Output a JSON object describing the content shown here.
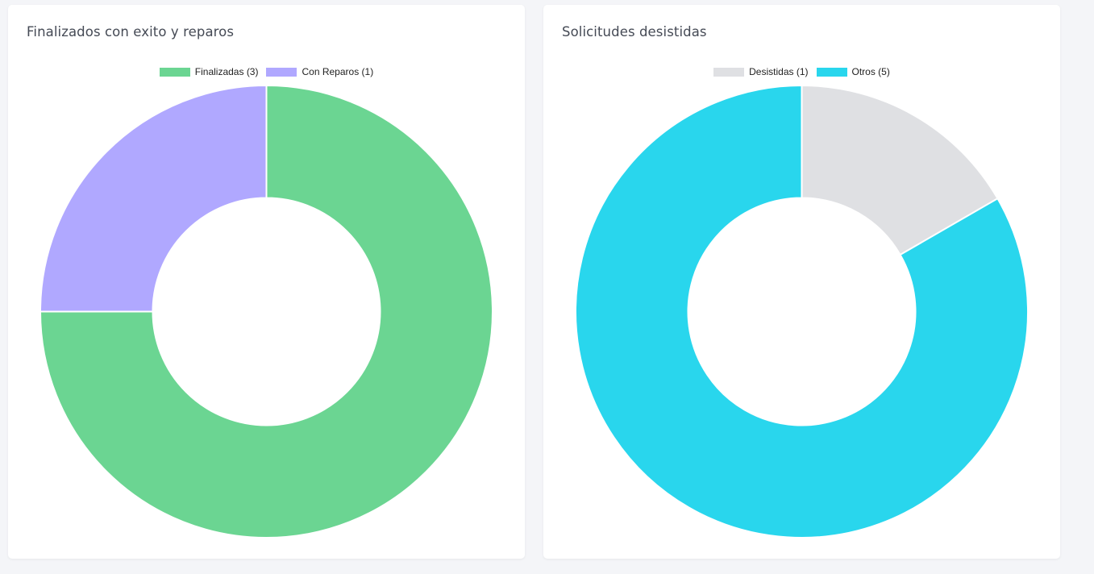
{
  "chart_data": [
    {
      "type": "pie",
      "title": "Finalizados con exito y reparos",
      "labels": [
        "Finalizadas (3)",
        "Con Reparos (1)"
      ],
      "values": [
        3,
        1
      ],
      "colors": [
        "#6bd592",
        "#b0a8ff"
      ],
      "legend": "top"
    },
    {
      "type": "pie",
      "title": "Solicitudes desistidas",
      "labels": [
        "Desistidas (1)",
        "Otros (5)"
      ],
      "values": [
        1,
        5
      ],
      "colors": [
        "#dfe0e3",
        "#29d6ed"
      ],
      "legend": "top"
    }
  ]
}
